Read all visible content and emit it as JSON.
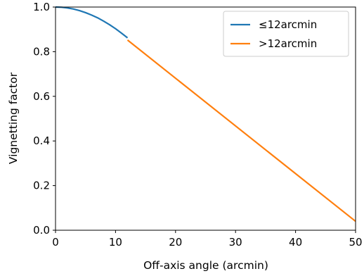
{
  "chart_data": {
    "type": "line",
    "xlabel": "Off-axis angle (arcmin)",
    "ylabel": "Vignetting factor",
    "xlim": [
      0,
      50
    ],
    "ylim": [
      0.0,
      1.0
    ],
    "x_ticks": [
      "0",
      "10",
      "20",
      "30",
      "40",
      "50"
    ],
    "y_ticks": [
      "0.0",
      "0.2",
      "0.4",
      "0.6",
      "0.8",
      "1.0"
    ],
    "grid": false,
    "legend_position": "top-right",
    "series": [
      {
        "name": "≤12arcmin",
        "color": "#1f77b4",
        "x": [
          0,
          1,
          2,
          3,
          4,
          5,
          6,
          7,
          8,
          9,
          10,
          11,
          12
        ],
        "y": [
          1.0,
          0.999,
          0.996,
          0.991,
          0.984,
          0.975,
          0.964,
          0.952,
          0.937,
          0.921,
          0.903,
          0.883,
          0.862
        ]
      },
      {
        "name": ">12arcmin",
        "color": "#ff7f0e",
        "x": [
          12,
          50
        ],
        "y": [
          0.852,
          0.04
        ]
      }
    ]
  }
}
